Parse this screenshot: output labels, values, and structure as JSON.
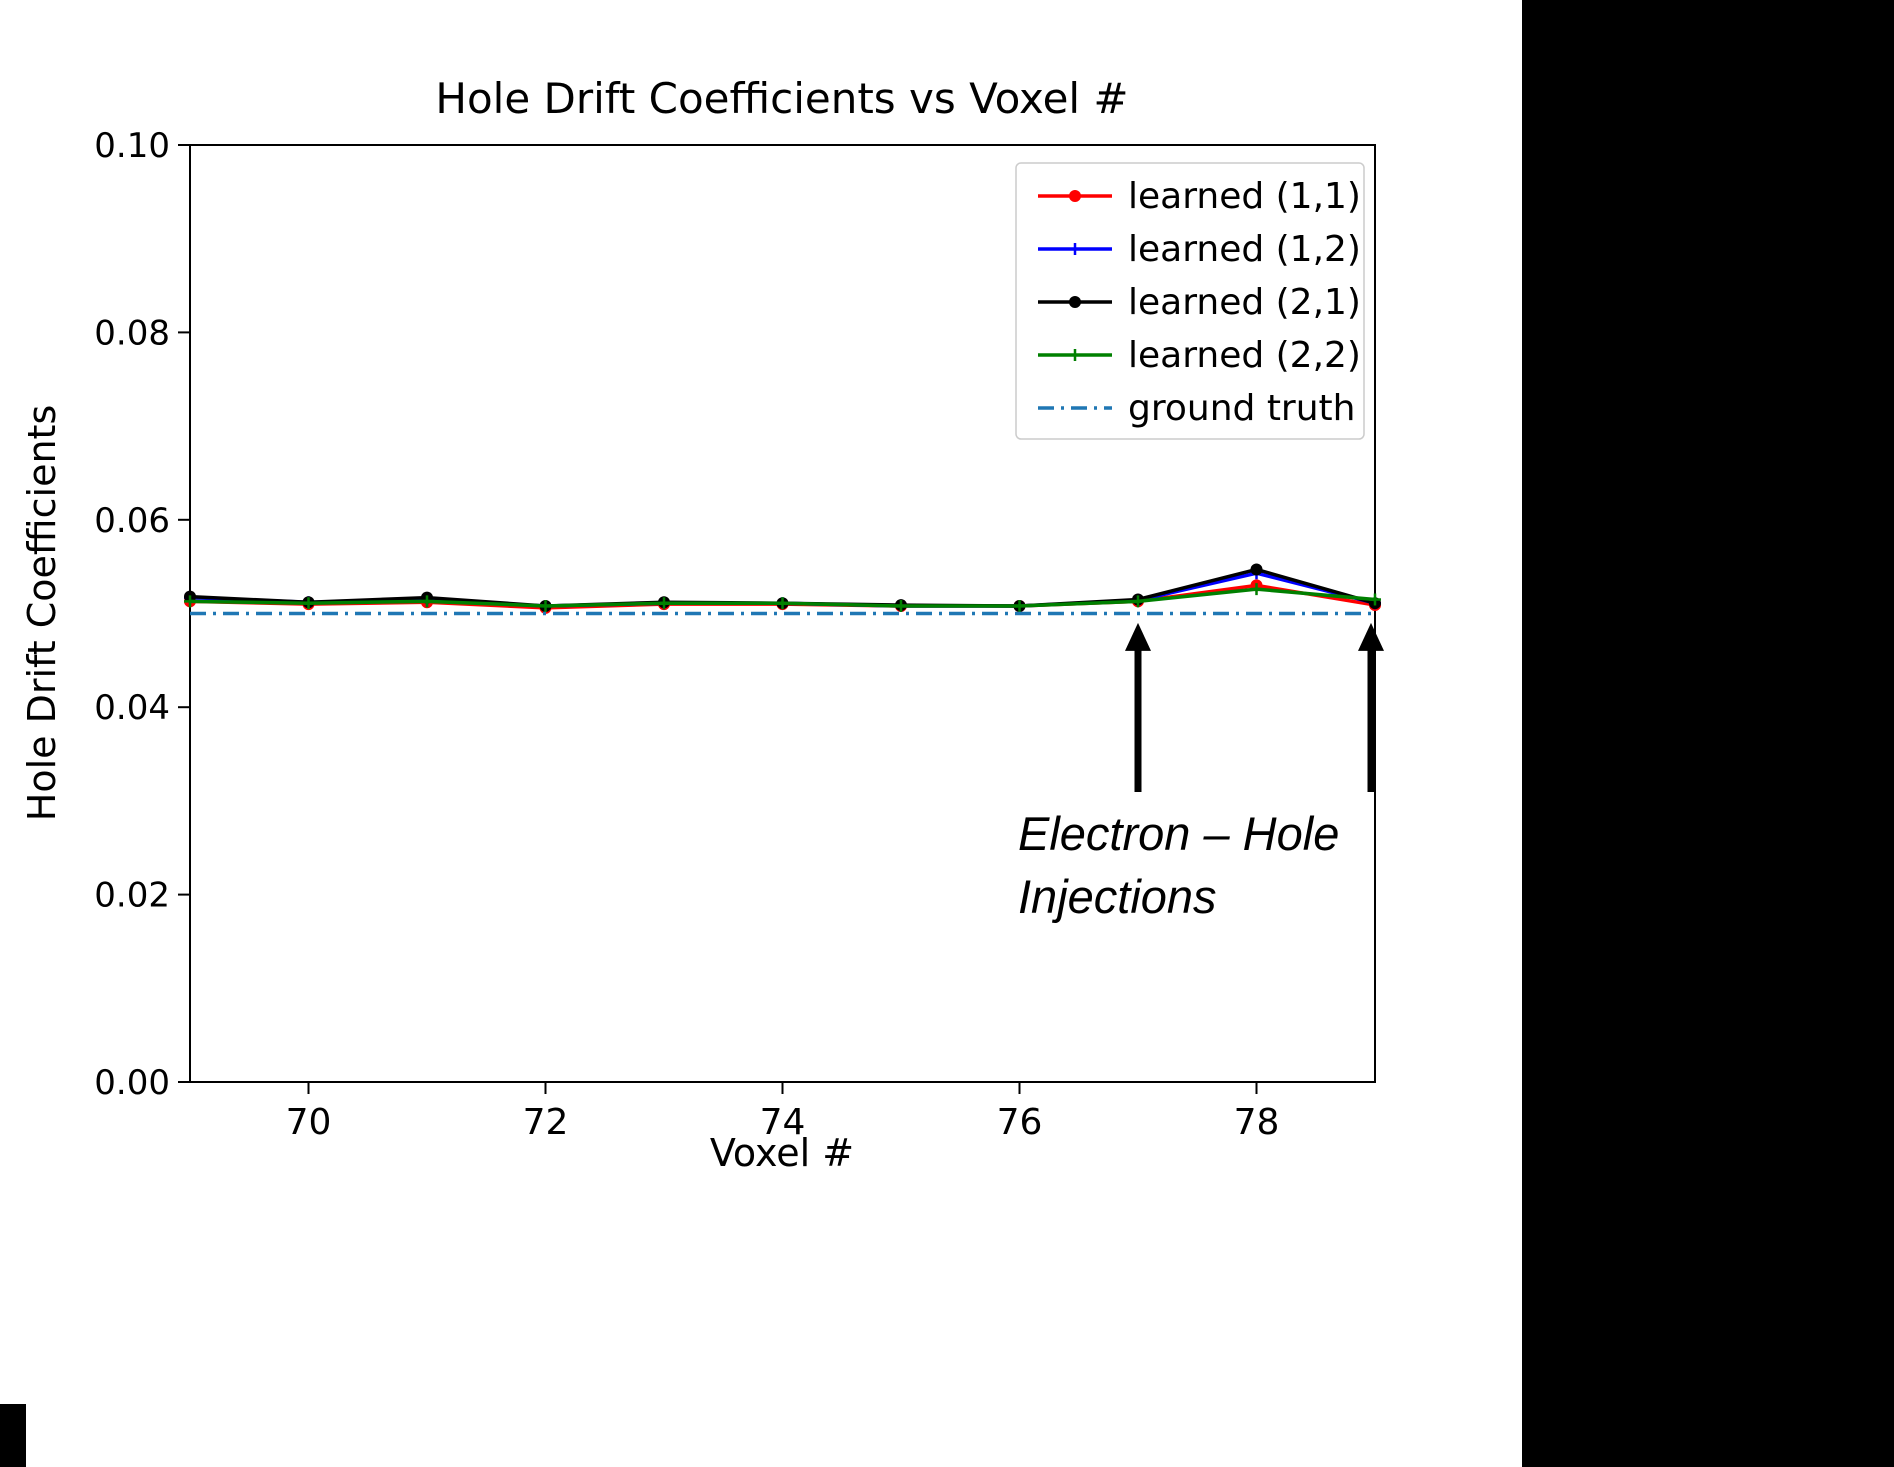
{
  "page": {
    "background": "#ffffff"
  },
  "decorations": {
    "right_panel_color": "#000000",
    "bottom_left_mark_color": "#000000"
  },
  "chart_data": {
    "type": "line",
    "title": "Hole Drift Coefficients vs Voxel #",
    "xlabel": "Voxel #",
    "ylabel": "Hole Drift Coefficients",
    "xlim": [
      69,
      79
    ],
    "ylim": [
      0,
      0.1
    ],
    "xticks": [
      70,
      72,
      74,
      76,
      78
    ],
    "yticks": [
      0.0,
      0.02,
      0.04,
      0.06,
      0.08,
      0.1
    ],
    "grid": false,
    "legend_position": "upper right",
    "x": [
      69,
      70,
      71,
      72,
      73,
      74,
      75,
      76,
      77,
      78,
      79
    ],
    "series": [
      {
        "name": "learned (1,1)",
        "color": "#ff0000",
        "marker": "circle",
        "style": "solid",
        "values": [
          0.0513,
          0.051,
          0.0512,
          0.0506,
          0.051,
          0.051,
          0.0508,
          0.0508,
          0.0513,
          0.053,
          0.0509
        ]
      },
      {
        "name": "learned (1,2)",
        "color": "#0000ff",
        "marker": "plus",
        "style": "solid",
        "values": [
          0.0517,
          0.0512,
          0.0514,
          0.0508,
          0.0511,
          0.0511,
          0.0508,
          0.0508,
          0.0514,
          0.0543,
          0.0511
        ]
      },
      {
        "name": "learned (2,1)",
        "color": "#000000",
        "marker": "circle",
        "style": "solid",
        "values": [
          0.0518,
          0.0512,
          0.0517,
          0.0508,
          0.0512,
          0.0511,
          0.0509,
          0.0508,
          0.0515,
          0.0547,
          0.0511
        ]
      },
      {
        "name": "learned (2,2)",
        "color": "#008000",
        "marker": "plus",
        "style": "solid",
        "values": [
          0.0513,
          0.0511,
          0.0513,
          0.0508,
          0.0511,
          0.0511,
          0.0508,
          0.0508,
          0.0513,
          0.0526,
          0.0515
        ]
      },
      {
        "name": "ground truth",
        "color": "#1f77b4",
        "marker": "none",
        "style": "dashdot",
        "values": [
          0.05,
          0.05,
          0.05,
          0.05,
          0.05,
          0.05,
          0.05,
          0.05,
          0.05,
          0.05,
          0.05
        ]
      }
    ],
    "annotations": [
      {
        "text": "Electron – Hole"
      },
      {
        "text": "Injections"
      }
    ],
    "annotation_color": "#4472C4",
    "arrow_color": "#000000",
    "arrows": [
      {
        "x": 77
      },
      {
        "x": 79
      }
    ]
  }
}
